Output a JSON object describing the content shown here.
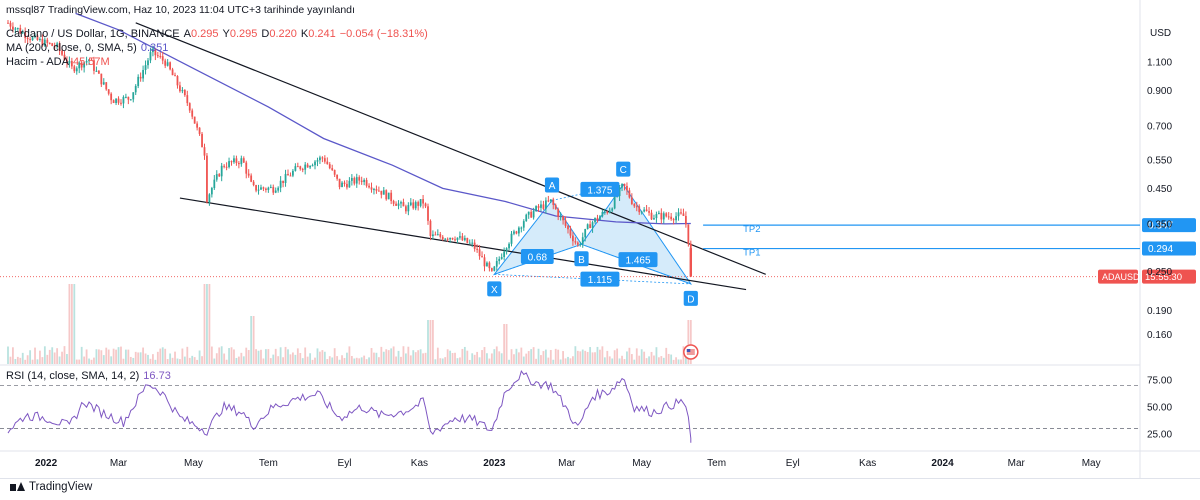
{
  "header": {
    "author_line": "mssql87 TradingView.com, Haz 10, 2023 11:04 UTC+3 tarihinde yayınlandı",
    "symbol_title": "Cardano / US Dollar, 1G, BINANCE",
    "ohlc": {
      "A_label": "A",
      "A_value": "0.295",
      "Y_label": "Y",
      "Y_value": "0.295",
      "D_label": "D",
      "D_value": "0.220",
      "K_label": "K",
      "K_value": "0.241",
      "change": "−0.054 (−18.31%)"
    },
    "ma_label": "MA (200, close, 0, SMA, 5)",
    "ma_value": "0.351",
    "volume_label": "Hacim - ADA",
    "volume_value": "45.57M"
  },
  "rsi_header": {
    "label": "RSI (14, close, SMA, 14, 2)",
    "value": "16.73"
  },
  "footer": {
    "brand": "TradingView"
  },
  "colors": {
    "up": "#26a69a",
    "down": "#ef5350",
    "ma": "#5b58c9",
    "trend": "#131722",
    "harmonic_fill": "#bfe0f7",
    "harmonic_line": "#2196f3",
    "tp_line": "#2196f3",
    "label_bg": "#2196f3",
    "price_bg": "#ef5350",
    "rsi": "#7e57c2"
  },
  "chart_data": [
    {
      "type": "candlestick",
      "title": "Cardano / US Dollar, 1G, BINANCE",
      "yscale": "log",
      "ylim": [
        0.13,
        1.5
      ],
      "y_unit": "USD",
      "y_ticks": [
        "1.100",
        "0.900",
        "0.700",
        "0.550",
        "0.450",
        "0.350",
        "0.250",
        "0.190",
        "0.160"
      ],
      "x_ticks": [
        "2022",
        "Mar",
        "May",
        "Tem",
        "Eyl",
        "Kas",
        "2023",
        "Mar",
        "May",
        "Tem",
        "Eyl",
        "Kas",
        "2024",
        "Mar",
        "May"
      ],
      "xlim": [
        "2021-12-01",
        "2024-05-31"
      ],
      "price_path": [
        [
          "2021-12-01",
          1.45
        ],
        [
          "2021-12-20",
          1.3
        ],
        [
          "2022-01-10",
          1.22
        ],
        [
          "2022-01-22",
          1.05
        ],
        [
          "2022-02-05",
          1.12
        ],
        [
          "2022-02-24",
          0.84
        ],
        [
          "2022-03-10",
          0.85
        ],
        [
          "2022-03-28",
          1.18
        ],
        [
          "2022-04-08",
          1.1
        ],
        [
          "2022-04-28",
          0.8
        ],
        [
          "2022-05-10",
          0.58
        ],
        [
          "2022-05-12",
          0.42
        ],
        [
          "2022-05-25",
          0.53
        ],
        [
          "2022-06-10",
          0.55
        ],
        [
          "2022-06-18",
          0.45
        ],
        [
          "2022-07-05",
          0.45
        ],
        [
          "2022-07-25",
          0.52
        ],
        [
          "2022-08-15",
          0.56
        ],
        [
          "2022-08-28",
          0.46
        ],
        [
          "2022-09-15",
          0.48
        ],
        [
          "2022-10-01",
          0.44
        ],
        [
          "2022-10-20",
          0.39
        ],
        [
          "2022-11-05",
          0.41
        ],
        [
          "2022-11-10",
          0.32
        ],
        [
          "2022-11-30",
          0.32
        ],
        [
          "2022-12-15",
          0.3
        ],
        [
          "2022-12-30",
          0.245
        ],
        [
          "2023-01-10",
          0.3
        ],
        [
          "2023-01-25",
          0.36
        ],
        [
          "2023-02-05",
          0.39
        ],
        [
          "2023-02-16",
          0.41
        ],
        [
          "2023-02-25",
          0.36
        ],
        [
          "2023-03-10",
          0.3
        ],
        [
          "2023-03-20",
          0.35
        ],
        [
          "2023-04-05",
          0.39
        ],
        [
          "2023-04-16",
          0.46
        ],
        [
          "2023-04-25",
          0.4
        ],
        [
          "2023-05-10",
          0.37
        ],
        [
          "2023-05-25",
          0.37
        ],
        [
          "2023-06-05",
          0.37
        ],
        [
          "2023-06-09",
          0.295
        ],
        [
          "2023-06-10",
          0.241
        ]
      ],
      "ma_200_path": [
        [
          "2022-01-25",
          1.55
        ],
        [
          "2022-03-01",
          1.38
        ],
        [
          "2022-05-01",
          1.05
        ],
        [
          "2022-07-01",
          0.8
        ],
        [
          "2022-08-15",
          0.64
        ],
        [
          "2022-10-10",
          0.53
        ],
        [
          "2022-11-20",
          0.45
        ],
        [
          "2023-01-10",
          0.41
        ],
        [
          "2023-02-20",
          0.37
        ],
        [
          "2023-04-10",
          0.355
        ],
        [
          "2023-05-20",
          0.35
        ],
        [
          "2023-06-10",
          0.351
        ]
      ],
      "trendlines": [
        {
          "name": "upper",
          "from": [
            "2022-03-15",
            1.45
          ],
          "to": [
            "2023-08-10",
            0.245
          ]
        },
        {
          "name": "lower",
          "from": [
            "2022-04-20",
            0.42
          ],
          "to": [
            "2023-07-25",
            0.22
          ]
        }
      ],
      "harmonic_pattern": {
        "points": [
          {
            "label": "X",
            "date": "2023-01-01",
            "price": 0.245
          },
          {
            "label": "A",
            "date": "2023-02-17",
            "price": 0.413
          },
          {
            "label": "B",
            "date": "2023-03-13",
            "price": 0.303
          },
          {
            "label": "C",
            "date": "2023-04-16",
            "price": 0.462
          },
          {
            "label": "D",
            "date": "2023-06-10",
            "price": 0.229
          }
        ],
        "ratios": [
          {
            "text": "0.68",
            "date": "2023-02-05",
            "price": 0.277
          },
          {
            "text": "1.375",
            "date": "2023-03-28",
            "price": 0.445
          },
          {
            "text": "1.465",
            "date": "2023-04-28",
            "price": 0.271
          },
          {
            "text": "1.115",
            "date": "2023-03-28",
            "price": 0.236
          }
        ]
      },
      "targets": [
        {
          "label": "TP2",
          "price": 0.347,
          "price_text": "0.347",
          "from": "2023-06-20",
          "to": "2024-05-31"
        },
        {
          "label": "TP1",
          "price": 0.294,
          "price_text": "0.294",
          "from": "2023-06-20",
          "to": "2024-05-31"
        }
      ],
      "current_price_label": {
        "symbol": "ADAUSD",
        "time": "15:55:30",
        "price": 0.241
      }
    },
    {
      "type": "line",
      "title": "RSI (14, close, SMA, 14, 2)",
      "ylim": [
        10,
        88
      ],
      "y_ticks": [
        "75.00",
        "50.00",
        "25.00"
      ],
      "bands": [
        70,
        30
      ],
      "xlim": [
        "2021-12-01",
        "2024-05-31"
      ],
      "values": [
        [
          "2021-12-01",
          28
        ],
        [
          "2021-12-15",
          42
        ],
        [
          "2022-01-01",
          40
        ],
        [
          "2022-01-20",
          32
        ],
        [
          "2022-02-01",
          55
        ],
        [
          "2022-02-15",
          45
        ],
        [
          "2022-03-05",
          36
        ],
        [
          "2022-03-25",
          72
        ],
        [
          "2022-04-05",
          64
        ],
        [
          "2022-04-20",
          40
        ],
        [
          "2022-05-12",
          28
        ],
        [
          "2022-05-25",
          50
        ],
        [
          "2022-06-10",
          45
        ],
        [
          "2022-06-18",
          32
        ],
        [
          "2022-07-05",
          50
        ],
        [
          "2022-07-25",
          58
        ],
        [
          "2022-08-10",
          62
        ],
        [
          "2022-08-28",
          40
        ],
        [
          "2022-09-15",
          50
        ],
        [
          "2022-10-01",
          42
        ],
        [
          "2022-10-20",
          46
        ],
        [
          "2022-11-05",
          55
        ],
        [
          "2022-11-10",
          25
        ],
        [
          "2022-11-30",
          40
        ],
        [
          "2022-12-15",
          38
        ],
        [
          "2022-12-30",
          28
        ],
        [
          "2023-01-10",
          65
        ],
        [
          "2023-01-22",
          80
        ],
        [
          "2023-02-05",
          72
        ],
        [
          "2023-02-16",
          70
        ],
        [
          "2023-02-28",
          50
        ],
        [
          "2023-03-10",
          30
        ],
        [
          "2023-03-22",
          60
        ],
        [
          "2023-04-05",
          65
        ],
        [
          "2023-04-16",
          78
        ],
        [
          "2023-04-25",
          50
        ],
        [
          "2023-05-10",
          45
        ],
        [
          "2023-05-25",
          52
        ],
        [
          "2023-06-05",
          55
        ],
        [
          "2023-06-08",
          40
        ],
        [
          "2023-06-10",
          16.73
        ]
      ]
    },
    {
      "type": "bar",
      "title": "Hacim - ADA",
      "last_value": "45.57M",
      "spikes": [
        [
          "2022-01-22",
          1.0
        ],
        [
          "2022-05-12",
          1.0
        ],
        [
          "2022-06-18",
          0.6
        ],
        [
          "2022-11-10",
          0.55
        ],
        [
          "2023-01-10",
          0.5
        ],
        [
          "2023-06-10",
          0.55
        ]
      ]
    }
  ]
}
